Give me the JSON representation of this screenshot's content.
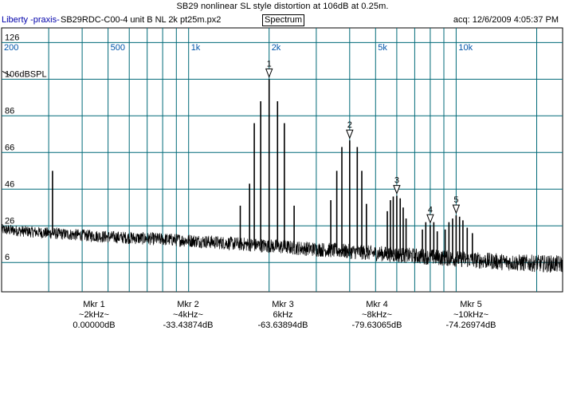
{
  "header": {
    "title": "SB29 nonlinear SL style distortion at 106dB at 0.25m.",
    "app_name": "Liberty -praxis-",
    "file_name": "SB29RDC-C00-4 unit B NL 2k pt25m.px2",
    "mode_label": "Spectrum",
    "acq_text": "acq: 12/6/2009 4:05:37 PM"
  },
  "chart_data": {
    "type": "line",
    "title": "SB29 nonlinear SL style distortion at 106dB at 0.25m.",
    "x_scale": "log",
    "xlim": [
      200,
      25000
    ],
    "ylim": [
      -10,
      134
    ],
    "grid": true,
    "x_tick_labels": [
      {
        "value": 200,
        "label": "200"
      },
      {
        "value": 500,
        "label": "500"
      },
      {
        "value": 1000,
        "label": "1k"
      },
      {
        "value": 2000,
        "label": "2k"
      },
      {
        "value": 5000,
        "label": "5k"
      },
      {
        "value": 10000,
        "label": "10k"
      }
    ],
    "x_grid_values": [
      300,
      400,
      500,
      600,
      700,
      800,
      900,
      1000,
      2000,
      3000,
      4000,
      5000,
      6000,
      7000,
      8000,
      9000,
      10000,
      20000
    ],
    "y_tick_labels": [
      {
        "value": 126,
        "label": "126"
      },
      {
        "value": 106,
        "label": "106dBSPL"
      },
      {
        "value": 86,
        "label": "86"
      },
      {
        "value": 66,
        "label": "66"
      },
      {
        "value": 46,
        "label": "46"
      },
      {
        "value": 26,
        "label": "26"
      },
      {
        "value": 6,
        "label": "6"
      }
    ],
    "y_grid_values": [
      126,
      106,
      86,
      66,
      46,
      26,
      6
    ],
    "reference_level_label": "106dBSPL",
    "noise_floor": [
      {
        "x": 200,
        "y": 24
      },
      {
        "x": 300,
        "y": 22
      },
      {
        "x": 500,
        "y": 20
      },
      {
        "x": 1000,
        "y": 18
      },
      {
        "x": 2000,
        "y": 15
      },
      {
        "x": 4000,
        "y": 12
      },
      {
        "x": 8000,
        "y": 9
      },
      {
        "x": 16000,
        "y": 6
      },
      {
        "x": 25000,
        "y": 5
      }
    ],
    "noise_amplitude_db": 3,
    "peaks": [
      {
        "x": 310,
        "y": 56
      },
      {
        "x": 1560,
        "y": 37
      },
      {
        "x": 1690,
        "y": 49
      },
      {
        "x": 1760,
        "y": 82
      },
      {
        "x": 1860,
        "y": 94
      },
      {
        "x": 2000,
        "y": 106
      },
      {
        "x": 2150,
        "y": 94
      },
      {
        "x": 2280,
        "y": 82
      },
      {
        "x": 2480,
        "y": 37
      },
      {
        "x": 4000,
        "y": 72.6
      },
      {
        "x": 3580,
        "y": 56
      },
      {
        "x": 3740,
        "y": 69
      },
      {
        "x": 4270,
        "y": 69
      },
      {
        "x": 4440,
        "y": 56
      },
      {
        "x": 3400,
        "y": 40
      },
      {
        "x": 4620,
        "y": 38
      },
      {
        "x": 6000,
        "y": 42.4
      },
      {
        "x": 5680,
        "y": 40
      },
      {
        "x": 5820,
        "y": 42
      },
      {
        "x": 6180,
        "y": 41
      },
      {
        "x": 6340,
        "y": 36
      },
      {
        "x": 5530,
        "y": 34
      },
      {
        "x": 6500,
        "y": 30
      },
      {
        "x": 8000,
        "y": 26.4
      },
      {
        "x": 7700,
        "y": 28
      },
      {
        "x": 8250,
        "y": 28
      },
      {
        "x": 7480,
        "y": 24
      },
      {
        "x": 8500,
        "y": 23
      },
      {
        "x": 10000,
        "y": 31.7
      },
      {
        "x": 9400,
        "y": 28
      },
      {
        "x": 9700,
        "y": 30
      },
      {
        "x": 10300,
        "y": 31
      },
      {
        "x": 10600,
        "y": 29
      },
      {
        "x": 11000,
        "y": 25
      },
      {
        "x": 9100,
        "y": 24
      },
      {
        "x": 11500,
        "y": 22
      }
    ],
    "markers": [
      {
        "number": "1",
        "x": 2000,
        "y": 106
      },
      {
        "number": "2",
        "x": 4000,
        "y": 72.6
      },
      {
        "number": "3",
        "x": 6000,
        "y": 42.4
      },
      {
        "number": "4",
        "x": 8000,
        "y": 26.4
      },
      {
        "number": "5",
        "x": 10000,
        "y": 31.7
      }
    ],
    "colors": {
      "grid": "#006a78",
      "trace": "#000000",
      "axis_text": "#0055aa",
      "tick_text": "#000000"
    }
  },
  "markers_table": [
    {
      "name": "Mkr 1",
      "freq": "~2kHz~",
      "level": "0.00000dB"
    },
    {
      "name": "Mkr 2",
      "freq": "~4kHz~",
      "level": "-33.43874dB"
    },
    {
      "name": "Mkr 3",
      "freq": "6kHz",
      "level": "-63.63894dB"
    },
    {
      "name": "Mkr 4",
      "freq": "~8kHz~",
      "level": "-79.63065dB"
    },
    {
      "name": "Mkr 5",
      "freq": "~10kHz~",
      "level": "-74.26974dB"
    }
  ]
}
